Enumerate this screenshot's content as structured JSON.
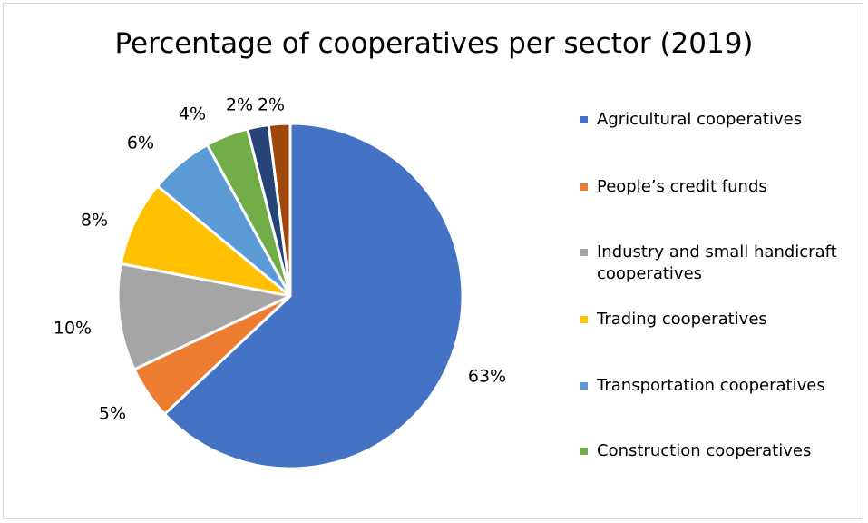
{
  "chart_data": {
    "type": "pie",
    "title": "Percentage of cooperatives per sector (2019)",
    "slices": [
      {
        "name": "Agricultural cooperatives",
        "value": 63,
        "label": "63%",
        "color": "#4472c4"
      },
      {
        "name": "People’s credit funds",
        "value": 5,
        "label": "5%",
        "color": "#ed7d31"
      },
      {
        "name": "Industry and small handicraft cooperatives",
        "value": 10,
        "label": "10%",
        "color": "#a5a5a5"
      },
      {
        "name": "Trading cooperatives",
        "value": 8,
        "label": "8%",
        "color": "#ffc000"
      },
      {
        "name": "Transportation cooperatives",
        "value": 6,
        "label": "6%",
        "color": "#5b9bd5"
      },
      {
        "name": "Construction cooperatives",
        "value": 4,
        "label": "4%",
        "color": "#70ad47"
      },
      {
        "value": 2,
        "label": "2%",
        "color": "#264478"
      },
      {
        "value": 2,
        "label": "2%",
        "color": "#9e480e"
      }
    ],
    "legend": {
      "position": "right",
      "entries": [
        {
          "label": "Agricultural cooperatives",
          "color": "#4472c4"
        },
        {
          "label": "People’s credit funds",
          "color": "#ed7d31"
        },
        {
          "label": "Industry and small handicraft cooperatives",
          "color": "#a5a5a5"
        },
        {
          "label": "Trading cooperatives",
          "color": "#ffc000"
        },
        {
          "label": "Transportation cooperatives",
          "color": "#5b9bd5"
        },
        {
          "label": "Construction cooperatives",
          "color": "#70ad47"
        }
      ]
    },
    "start_angle": "12 o'clock",
    "direction": "clockwise"
  }
}
